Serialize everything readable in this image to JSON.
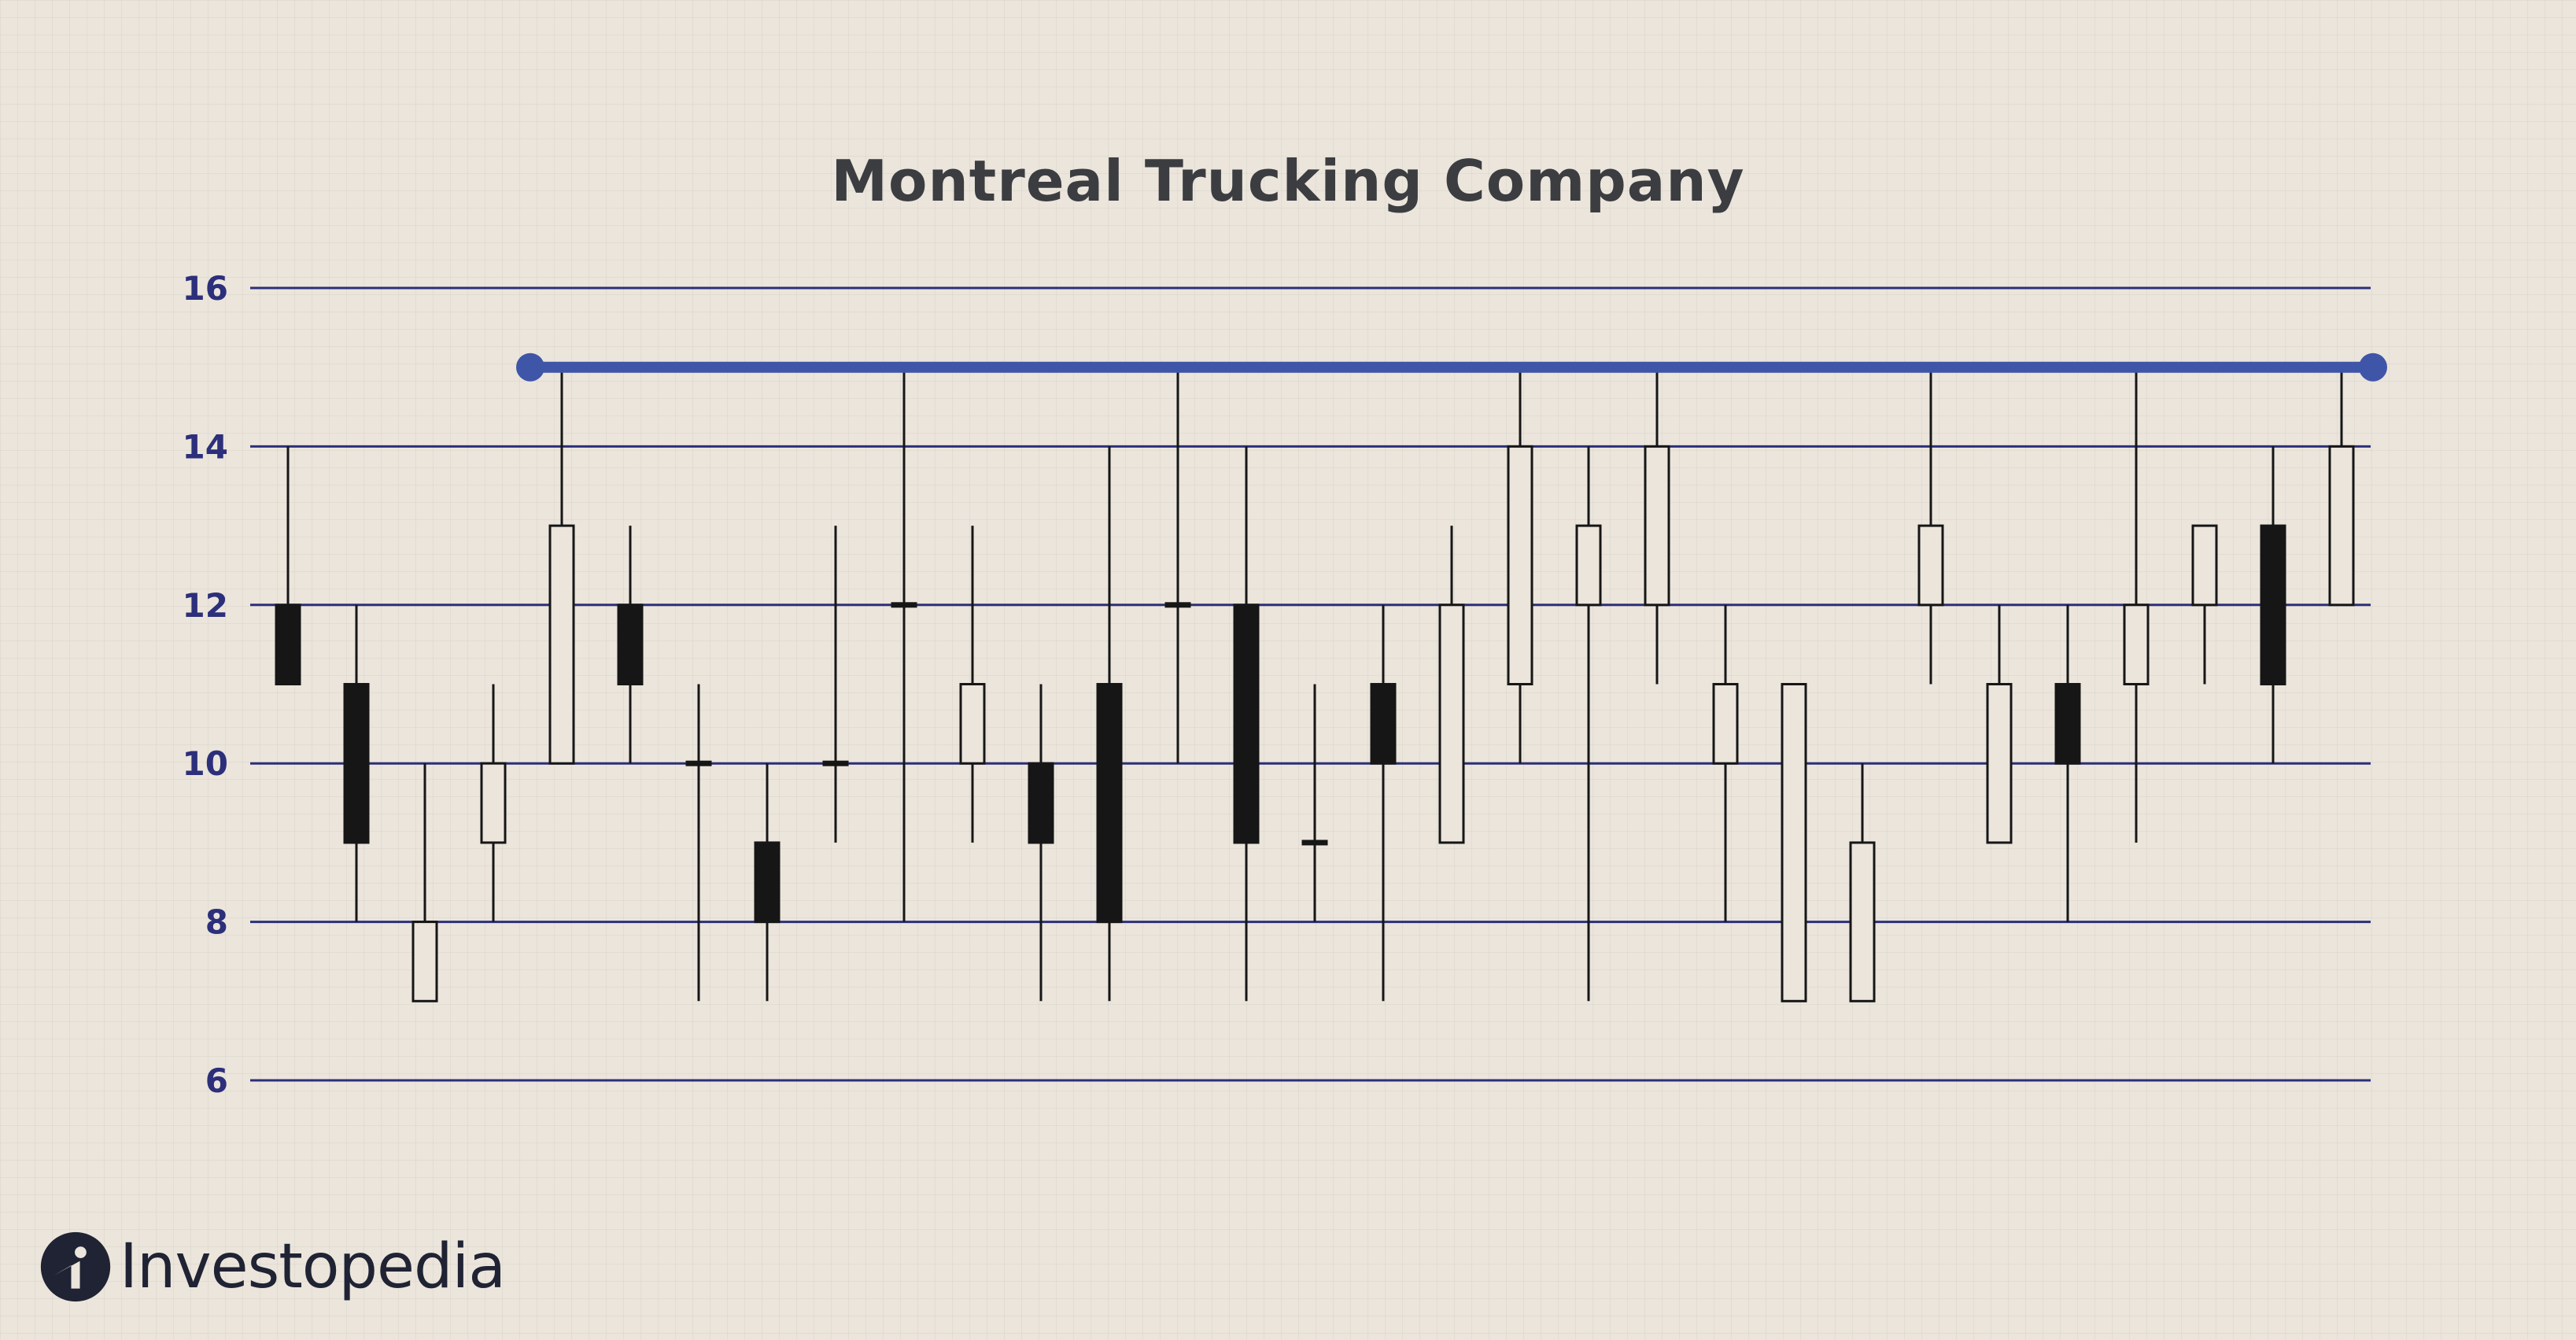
{
  "chart_data": {
    "type": "candlestick",
    "title": "Montreal Trucking Company",
    "xlabel": "",
    "ylabel": "",
    "ylim": [
      6,
      16
    ],
    "yticks": [
      6,
      8,
      10,
      12,
      14,
      16
    ],
    "grid": "horizontal",
    "resistance_line": {
      "value": 15,
      "from_index": 4,
      "to_index": 30,
      "color": "#3f55a8"
    },
    "candles": [
      {
        "open": 12,
        "high": 14,
        "low": 11,
        "close": 11
      },
      {
        "open": 11,
        "high": 12,
        "low": 8,
        "close": 9
      },
      {
        "open": 7,
        "high": 10,
        "low": 7,
        "close": 8
      },
      {
        "open": 9,
        "high": 11,
        "low": 8,
        "close": 10
      },
      {
        "open": 10,
        "high": 15,
        "low": 10,
        "close": 13
      },
      {
        "open": 12,
        "high": 13,
        "low": 10,
        "close": 11
      },
      {
        "open": 10,
        "high": 11,
        "low": 7,
        "close": 10
      },
      {
        "open": 9,
        "high": 10,
        "low": 7,
        "close": 8
      },
      {
        "open": 10,
        "high": 13,
        "low": 9,
        "close": 10
      },
      {
        "open": 12,
        "high": 15,
        "low": 8,
        "close": 12
      },
      {
        "open": 10,
        "high": 13,
        "low": 9,
        "close": 11
      },
      {
        "open": 10,
        "high": 11,
        "low": 7,
        "close": 9
      },
      {
        "open": 11,
        "high": 14,
        "low": 7,
        "close": 8
      },
      {
        "open": 12,
        "high": 15,
        "low": 10,
        "close": 12
      },
      {
        "open": 12,
        "high": 14,
        "low": 7,
        "close": 9
      },
      {
        "open": 9,
        "high": 11,
        "low": 8,
        "close": 9
      },
      {
        "open": 11,
        "high": 12,
        "low": 7,
        "close": 10
      },
      {
        "open": 9,
        "high": 13,
        "low": 9,
        "close": 12
      },
      {
        "open": 11,
        "high": 15,
        "low": 10,
        "close": 14
      },
      {
        "open": 12,
        "high": 14,
        "low": 7,
        "close": 13
      },
      {
        "open": 12,
        "high": 15,
        "low": 11,
        "close": 14
      },
      {
        "open": 10,
        "high": 12,
        "low": 8,
        "close": 11
      },
      {
        "open": 7,
        "high": 11,
        "low": 7,
        "close": 11
      },
      {
        "open": 7,
        "high": 10,
        "low": 7,
        "close": 9
      },
      {
        "open": 12,
        "high": 15,
        "low": 11,
        "close": 13
      },
      {
        "open": 9,
        "high": 12,
        "low": 9,
        "close": 11
      },
      {
        "open": 11,
        "high": 12,
        "low": 8,
        "close": 10
      },
      {
        "open": 11,
        "high": 15,
        "low": 9,
        "close": 12
      },
      {
        "open": 12,
        "high": 13,
        "low": 11,
        "close": 13
      },
      {
        "open": 13,
        "high": 14,
        "low": 10,
        "close": 11
      },
      {
        "open": 12,
        "high": 15,
        "low": 12,
        "close": 14
      }
    ],
    "colors": {
      "grid": "#2c2f7a",
      "bearish": "#161616",
      "bullish": "#ebe5dc",
      "wick": "#161616"
    }
  },
  "brand": {
    "logo_text": "Investopedia",
    "logo_icon": "investopedia-logo-icon"
  }
}
